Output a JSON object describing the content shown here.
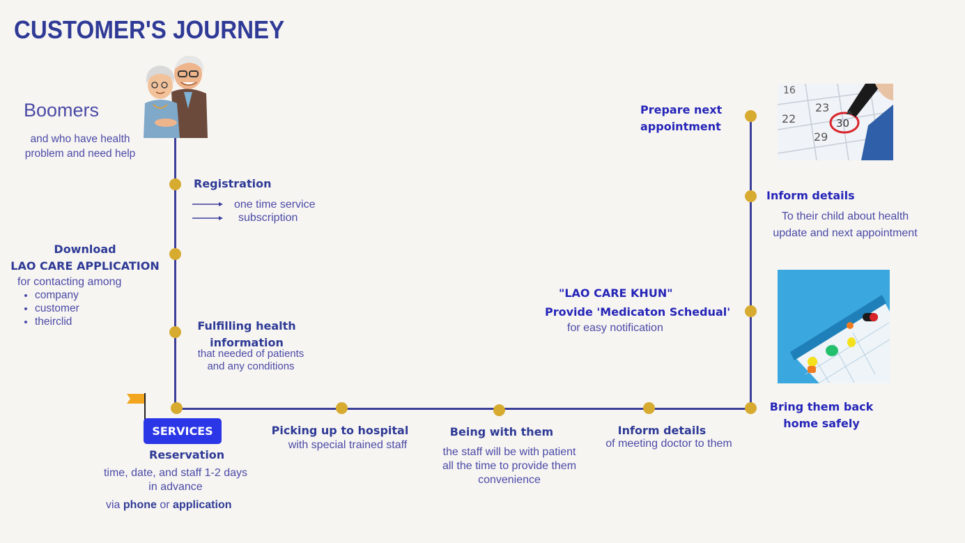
{
  "title": "CUSTOMER'S JOURNEY",
  "boomers": {
    "heading": "Boomers",
    "desc_line1": "and who have health",
    "desc_line2": "problem and need help"
  },
  "registration": {
    "heading": "Registration",
    "option1": "one time service",
    "option2": "subscription"
  },
  "download": {
    "line1": "Download",
    "line2": "LAO CARE APPLICATION",
    "desc": "for contacting among",
    "items": [
      "company",
      "customer",
      "theirclid"
    ]
  },
  "fulfilling": {
    "line1": "Fulfilling health",
    "line2": "information",
    "desc1": "that needed of patients",
    "desc2": "and any conditions"
  },
  "services": {
    "button_label": "SERVICES",
    "reservation": "Reservation",
    "desc1": "time, date, and staff 1-2 days",
    "desc2": "in advance",
    "via": "via",
    "phone": "phone",
    "or": "or",
    "application": "application"
  },
  "picking": {
    "heading": "Picking up to hospital",
    "desc": "with special trained staff"
  },
  "being": {
    "heading": "Being with them",
    "desc1": "the staff will be with patient",
    "desc2": "all the time to provide them",
    "desc3": "convenience"
  },
  "inform_doctor": {
    "heading": "Inform details",
    "desc": "of meeting doctor to them"
  },
  "bring_back": {
    "line1": "Bring them back",
    "line2": "home safely"
  },
  "lao_care_khun": {
    "line1": "\"LAO CARE KHUN\"",
    "line2": "Provide 'Medicaton Schedual'",
    "desc": "for easy notification"
  },
  "inform_child": {
    "heading": "Inform details",
    "desc1": "To their child about health",
    "desc2": "update and next appointment"
  },
  "prepare": {
    "line1": "Prepare next",
    "line2": "appointment"
  },
  "colors": {
    "line": "#3c3f9a",
    "dot": "#d6ab2f",
    "button": "#2b36e6",
    "title": "#2e3a96",
    "flag": "#f2a51e"
  },
  "icons": {
    "elderly_couple": "elderly-couple-image",
    "calendar": "calendar-image",
    "pill_schedule": "pill-schedule-image",
    "flag": "flag-icon"
  }
}
